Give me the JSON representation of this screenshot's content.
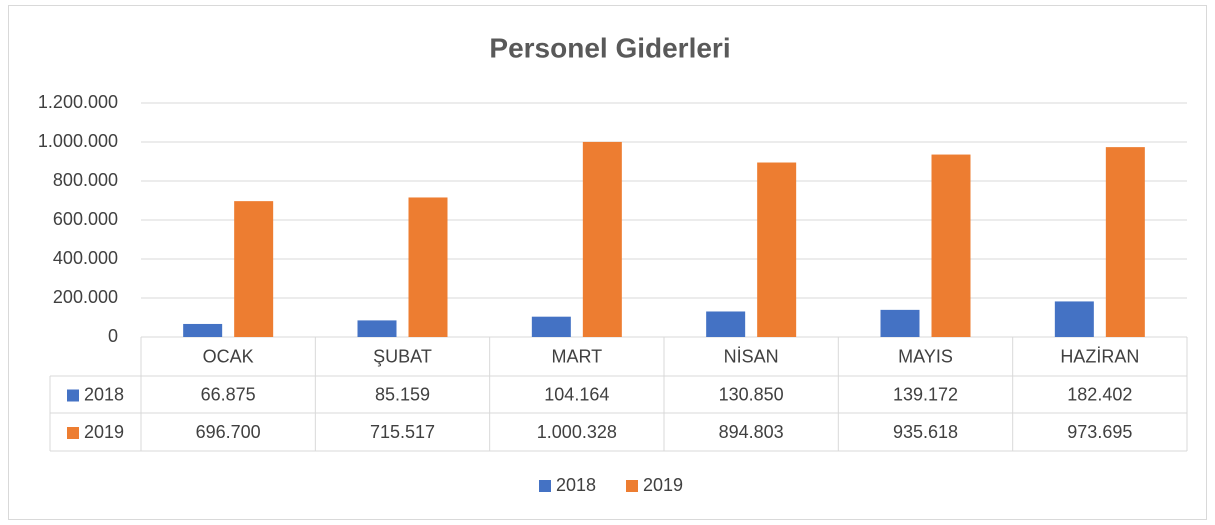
{
  "chart_data": {
    "type": "bar",
    "title": "Personel Giderleri",
    "categories": [
      "OCAK",
      "ŞUBAT",
      "MART",
      "NİSAN",
      "MAYIS",
      "HAZİRAN"
    ],
    "series": [
      {
        "name": "2018",
        "color": "#4472c4",
        "values": [
          66875,
          85159,
          104164,
          130850,
          139172,
          182402
        ],
        "value_labels": [
          "66.875",
          "85.159",
          "104.164",
          "130.850",
          "139.172",
          "182.402"
        ]
      },
      {
        "name": "2019",
        "color": "#ed7d31",
        "values": [
          696700,
          715517,
          1000328,
          894803,
          935618,
          973695
        ],
        "value_labels": [
          "696.700",
          "715.517",
          "1.000.328",
          "894.803",
          "935.618",
          "973.695"
        ]
      }
    ],
    "ylim": [
      0,
      1200000
    ],
    "yticks": [
      0,
      {
        "value": 200000,
        "label": "200.000"
      },
      {
        "value": 400000,
        "label": "400.000"
      },
      {
        "value": 600000,
        "label": "600.000"
      },
      {
        "value": 800000,
        "label": "800.000"
      },
      {
        "value": 1000000,
        "label": "1.000.000"
      },
      {
        "value": 1200000,
        "label": "1.200.000"
      }
    ],
    "grid": true,
    "legend": "bottom"
  }
}
